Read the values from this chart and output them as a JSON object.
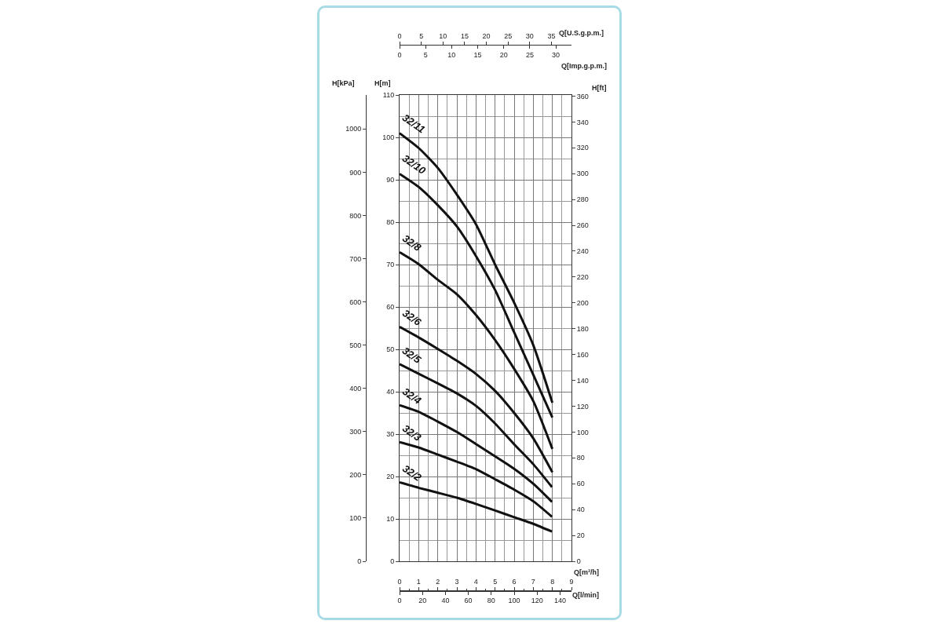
{
  "chart_data": [
    {
      "type": "line",
      "grid": true,
      "legend": false,
      "marker": "none",
      "line_style": "solid",
      "xlabel": "Q[m³/h]",
      "xlim": [
        0,
        9
      ],
      "xticks": [
        0,
        {
          "value": 0.5,
          "label": null
        },
        1,
        {
          "value": 1.5,
          "label": null
        },
        2,
        {
          "value": 2.5,
          "label": null
        },
        3,
        {
          "value": 3.5,
          "label": null
        },
        4,
        {
          "value": 4.5,
          "label": null
        },
        5,
        {
          "value": 5.5,
          "label": null
        },
        6,
        {
          "value": 6.5,
          "label": null
        },
        7,
        {
          "value": 7.5,
          "label": null
        },
        8,
        {
          "value": 8.5,
          "label": null
        },
        9
      ],
      "x2label": "Q[U.S.g.p.m.]",
      "x2lim": [
        0,
        39.63
      ],
      "x2ticks": [
        0,
        5,
        10,
        15,
        20,
        25,
        30,
        35
      ],
      "ylabel": "H[m]",
      "ylim": [
        0,
        110
      ],
      "yticks": [
        0,
        {
          "value": 5,
          "label": null
        },
        10,
        {
          "value": 15,
          "label": null
        },
        20,
        {
          "value": 25,
          "label": null
        },
        30,
        {
          "value": 35,
          "label": null
        },
        40,
        {
          "value": 45,
          "label": null
        },
        50,
        {
          "value": 55,
          "label": null
        },
        60,
        {
          "value": 65,
          "label": null
        },
        70,
        {
          "value": 75,
          "label": null
        },
        80,
        {
          "value": 85,
          "label": null
        },
        90,
        {
          "value": 95,
          "label": null
        },
        100,
        {
          "value": 105,
          "label": null
        },
        110
      ],
      "y2label": "H[kPa]",
      "y2lim": [
        0,
        1078.7
      ],
      "y2ticks": [
        0,
        100,
        200,
        300,
        400,
        500,
        600,
        700,
        800,
        900,
        1000
      ],
      "y3label": "H[ft]",
      "y3lim": [
        0,
        360.9
      ],
      "y3ticks": [
        0,
        20,
        40,
        60,
        80,
        100,
        120,
        140,
        160,
        180,
        200,
        220,
        240,
        260,
        280,
        300,
        320,
        340,
        360
      ],
      "x": [
        0,
        1,
        2,
        3,
        4,
        5,
        6,
        7,
        8
      ],
      "series": [
        {
          "name": "32/11",
          "color": "#111111",
          "values": [
            101.0,
            97.5,
            92.8,
            86.5,
            79.5,
            70.0,
            61.0,
            51.0,
            37.4
          ]
        },
        {
          "name": "32/10",
          "color": "#111111",
          "values": [
            91.4,
            88.3,
            84.0,
            79.0,
            72.0,
            64.0,
            54.0,
            44.0,
            33.9
          ]
        },
        {
          "name": "32/8",
          "color": "#111111",
          "values": [
            72.9,
            70.1,
            66.4,
            63.0,
            58.1,
            52.2,
            45.4,
            37.8,
            26.5
          ]
        },
        {
          "name": "32/6",
          "color": "#111111",
          "values": [
            55.3,
            52.8,
            50.1,
            47.3,
            44.2,
            40.2,
            35.0,
            29.0,
            21.0
          ]
        }
      ]
    },
    {
      "type": "line",
      "tick_labels": "x",
      "legend": false,
      "marker": "none",
      "line_style": "solid",
      "xlabel": "Q[l/min]",
      "xlim": [
        0,
        150
      ],
      "xticks": [
        0,
        20,
        40,
        60,
        80,
        100,
        120,
        140
      ],
      "x2label": "Q[Imp.g.p.m.]",
      "x2lim": [
        0,
        33.0
      ],
      "x2ticks": [
        0,
        5,
        10,
        15,
        20,
        25,
        30
      ],
      "ylim": [
        0,
        110
      ],
      "x": [
        0,
        17,
        33,
        50,
        67,
        83,
        100,
        117,
        133
      ],
      "series": [
        {
          "name": "32/5",
          "color": "#111111",
          "values": [
            46.5,
            44.2,
            42.0,
            39.6,
            36.6,
            32.6,
            27.6,
            22.8,
            17.5
          ]
        },
        {
          "name": "32/4",
          "color": "#111111",
          "values": [
            36.8,
            35.2,
            33.0,
            30.5,
            27.6,
            24.8,
            21.8,
            18.2,
            14.0
          ]
        },
        {
          "name": "32/3",
          "color": "#111111",
          "values": [
            28.1,
            26.8,
            25.2,
            23.5,
            21.7,
            19.4,
            16.9,
            14.1,
            10.5
          ]
        },
        {
          "name": "32/2",
          "color": "#111111",
          "values": [
            18.6,
            17.3,
            16.2,
            15.0,
            13.5,
            12.0,
            10.4,
            8.8,
            7.0
          ]
        }
      ]
    }
  ]
}
